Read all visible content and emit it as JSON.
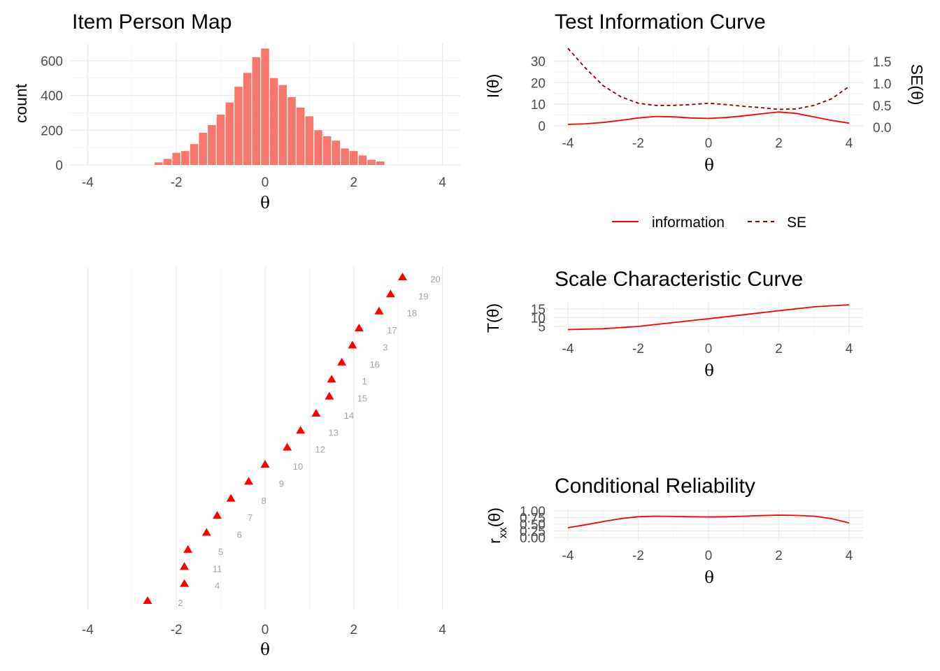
{
  "chart_data": [
    {
      "type": "bar",
      "title": "Item Person Map",
      "xlabel": "θ",
      "ylabel": "count",
      "xlim": [
        -4.4,
        4.4
      ],
      "ylim": [
        0,
        700
      ],
      "xticks": [
        "-4",
        "-2",
        "0",
        "2",
        "4"
      ],
      "yticks": [
        "0",
        "200",
        "400",
        "600"
      ],
      "bin_width": 0.2,
      "bin_centers": [
        -2.4,
        -2.2,
        -2.0,
        -1.8,
        -1.6,
        -1.4,
        -1.2,
        -1.0,
        -0.8,
        -0.6,
        -0.4,
        -0.2,
        0.0,
        0.2,
        0.4,
        0.6,
        0.8,
        1.0,
        1.2,
        1.4,
        1.6,
        1.8,
        2.0,
        2.2,
        2.4,
        2.6
      ],
      "values": [
        15,
        35,
        70,
        80,
        120,
        185,
        230,
        290,
        360,
        450,
        530,
        620,
        670,
        500,
        460,
        390,
        330,
        280,
        200,
        165,
        140,
        95,
        80,
        55,
        30,
        20
      ],
      "color": "#F8766D"
    },
    {
      "type": "scatter",
      "title": "",
      "xlabel": "θ",
      "xlim": [
        -4.4,
        4.4
      ],
      "xticks": [
        "-4",
        "-2",
        "0",
        "2",
        "4"
      ],
      "marker": "triangle",
      "color": "#FF0000",
      "points": [
        {
          "item": "2",
          "x": -2.65
        },
        {
          "item": "4",
          "x": -1.82
        },
        {
          "item": "11",
          "x": -1.82
        },
        {
          "item": "5",
          "x": -1.74
        },
        {
          "item": "6",
          "x": -1.32
        },
        {
          "item": "7",
          "x": -1.08
        },
        {
          "item": "8",
          "x": -0.77
        },
        {
          "item": "9",
          "x": -0.37
        },
        {
          "item": "10",
          "x": 0.0
        },
        {
          "item": "12",
          "x": 0.5
        },
        {
          "item": "13",
          "x": 0.8
        },
        {
          "item": "14",
          "x": 1.15
        },
        {
          "item": "15",
          "x": 1.45
        },
        {
          "item": "1",
          "x": 1.5
        },
        {
          "item": "16",
          "x": 1.73
        },
        {
          "item": "3",
          "x": 1.97
        },
        {
          "item": "17",
          "x": 2.12
        },
        {
          "item": "18",
          "x": 2.57
        },
        {
          "item": "19",
          "x": 2.83
        },
        {
          "item": "20",
          "x": 3.1
        }
      ]
    },
    {
      "type": "line",
      "title": "Test Information Curve",
      "xlabel": "θ",
      "ylabel": "I(θ)",
      "ylabel_right": "SE(θ)",
      "xlim": [
        -4.0,
        4.0
      ],
      "ylim": [
        -2,
        37
      ],
      "ylim_right": [
        -0.06,
        1.85
      ],
      "xticks": [
        "-4",
        "-2",
        "0",
        "2",
        "4"
      ],
      "yticks": [
        "0",
        "10",
        "20",
        "30"
      ],
      "yticks_right": [
        "0.0",
        "0.5",
        "1.0",
        "1.5"
      ],
      "x": [
        -4.0,
        -3.5,
        -3.0,
        -2.5,
        -2.0,
        -1.5,
        -1.0,
        -0.5,
        0.0,
        0.5,
        1.0,
        1.5,
        2.0,
        2.5,
        3.0,
        3.5,
        4.0
      ],
      "series": [
        {
          "name": "information",
          "style": "solid",
          "color": "#FF0000",
          "axis": "left",
          "values": [
            0.6,
            0.9,
            1.5,
            2.5,
            3.6,
            4.3,
            4.1,
            3.6,
            3.4,
            3.8,
            4.6,
            5.5,
            6.4,
            5.7,
            4.1,
            2.5,
            1.2
          ]
        },
        {
          "name": "SE",
          "style": "dashed",
          "color": "#8B0000",
          "axis": "right",
          "values": [
            1.8,
            1.35,
            0.95,
            0.7,
            0.55,
            0.5,
            0.5,
            0.52,
            0.55,
            0.52,
            0.48,
            0.45,
            0.41,
            0.42,
            0.5,
            0.65,
            0.93
          ]
        }
      ],
      "legend": {
        "position": "bottom",
        "entries": [
          "information",
          "SE"
        ]
      }
    },
    {
      "type": "line",
      "title": "Scale Characteristic Curve",
      "xlabel": "θ",
      "ylabel": "T(θ)",
      "xlim": [
        -4.0,
        4.0
      ],
      "ylim": [
        1,
        19
      ],
      "xticks": [
        "-4",
        "-2",
        "0",
        "2",
        "4"
      ],
      "yticks": [
        "5",
        "10",
        "15"
      ],
      "x": [
        -4.0,
        -3.0,
        -2.0,
        -1.0,
        0.0,
        1.0,
        2.0,
        3.0,
        4.0
      ],
      "series": [
        {
          "color": "#FF0000",
          "values": [
            3.2,
            3.7,
            5.0,
            7.2,
            9.4,
            11.7,
            14.0,
            16.2,
            17.4
          ]
        }
      ]
    },
    {
      "type": "line",
      "title": "Conditional Reliability",
      "xlabel": "θ",
      "ylabel": "r_xx(θ)",
      "xlim": [
        -4.0,
        4.0
      ],
      "ylim": [
        -0.1,
        1.1
      ],
      "xticks": [
        "-4",
        "-2",
        "0",
        "2",
        "4"
      ],
      "yticks": [
        "0.00",
        "0.25",
        "0.50",
        "0.75",
        "1.00"
      ],
      "x": [
        -4.0,
        -3.5,
        -3.0,
        -2.5,
        -2.0,
        -1.5,
        -1.0,
        -0.5,
        0.0,
        0.5,
        1.0,
        1.5,
        2.0,
        2.5,
        3.0,
        3.5,
        4.0
      ],
      "series": [
        {
          "color": "#FF0000",
          "values": [
            0.37,
            0.48,
            0.6,
            0.71,
            0.78,
            0.8,
            0.79,
            0.78,
            0.77,
            0.78,
            0.8,
            0.82,
            0.84,
            0.83,
            0.8,
            0.71,
            0.55
          ]
        }
      ]
    }
  ]
}
